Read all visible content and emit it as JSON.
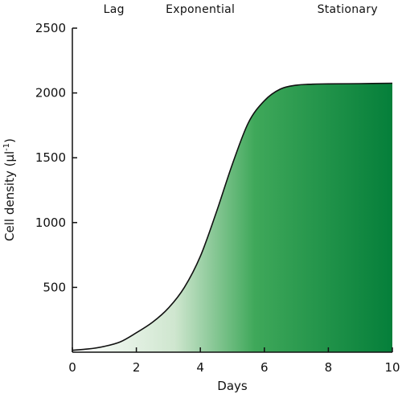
{
  "chart_data": {
    "type": "area",
    "title": "",
    "xlabel": "Days",
    "ylabel": "Cell density (µl",
    "ylabel_unit_sup": "-1",
    "ylabel_close": ")",
    "xlim": [
      0,
      10
    ],
    "ylim": [
      0,
      2500
    ],
    "x_ticks": [
      0,
      2,
      4,
      6,
      8,
      10
    ],
    "y_ticks": [
      500,
      1000,
      1500,
      2000,
      2500
    ],
    "grid": false,
    "phases": [
      {
        "label": "Lag",
        "x": 1.3
      },
      {
        "label": "Exponential",
        "x": 4.0
      },
      {
        "label": "Stationary",
        "x": 8.6
      }
    ],
    "series": [
      {
        "x": [
          0,
          0.5,
          1,
          1.5,
          2,
          2.5,
          3,
          3.5,
          4,
          4.5,
          5,
          5.5,
          6,
          6.5,
          7,
          7.5,
          8,
          9,
          10
        ],
        "y": [
          15,
          25,
          45,
          80,
          150,
          230,
          340,
          500,
          740,
          1080,
          1450,
          1770,
          1940,
          2030,
          2060,
          2068,
          2070,
          2072,
          2075
        ]
      }
    ],
    "colors": {
      "fill_light": "#cfe6cf",
      "fill_mid": "#3fa85a",
      "fill_dark": "#057f3a",
      "line": "#111111",
      "axis": "#111111"
    }
  }
}
